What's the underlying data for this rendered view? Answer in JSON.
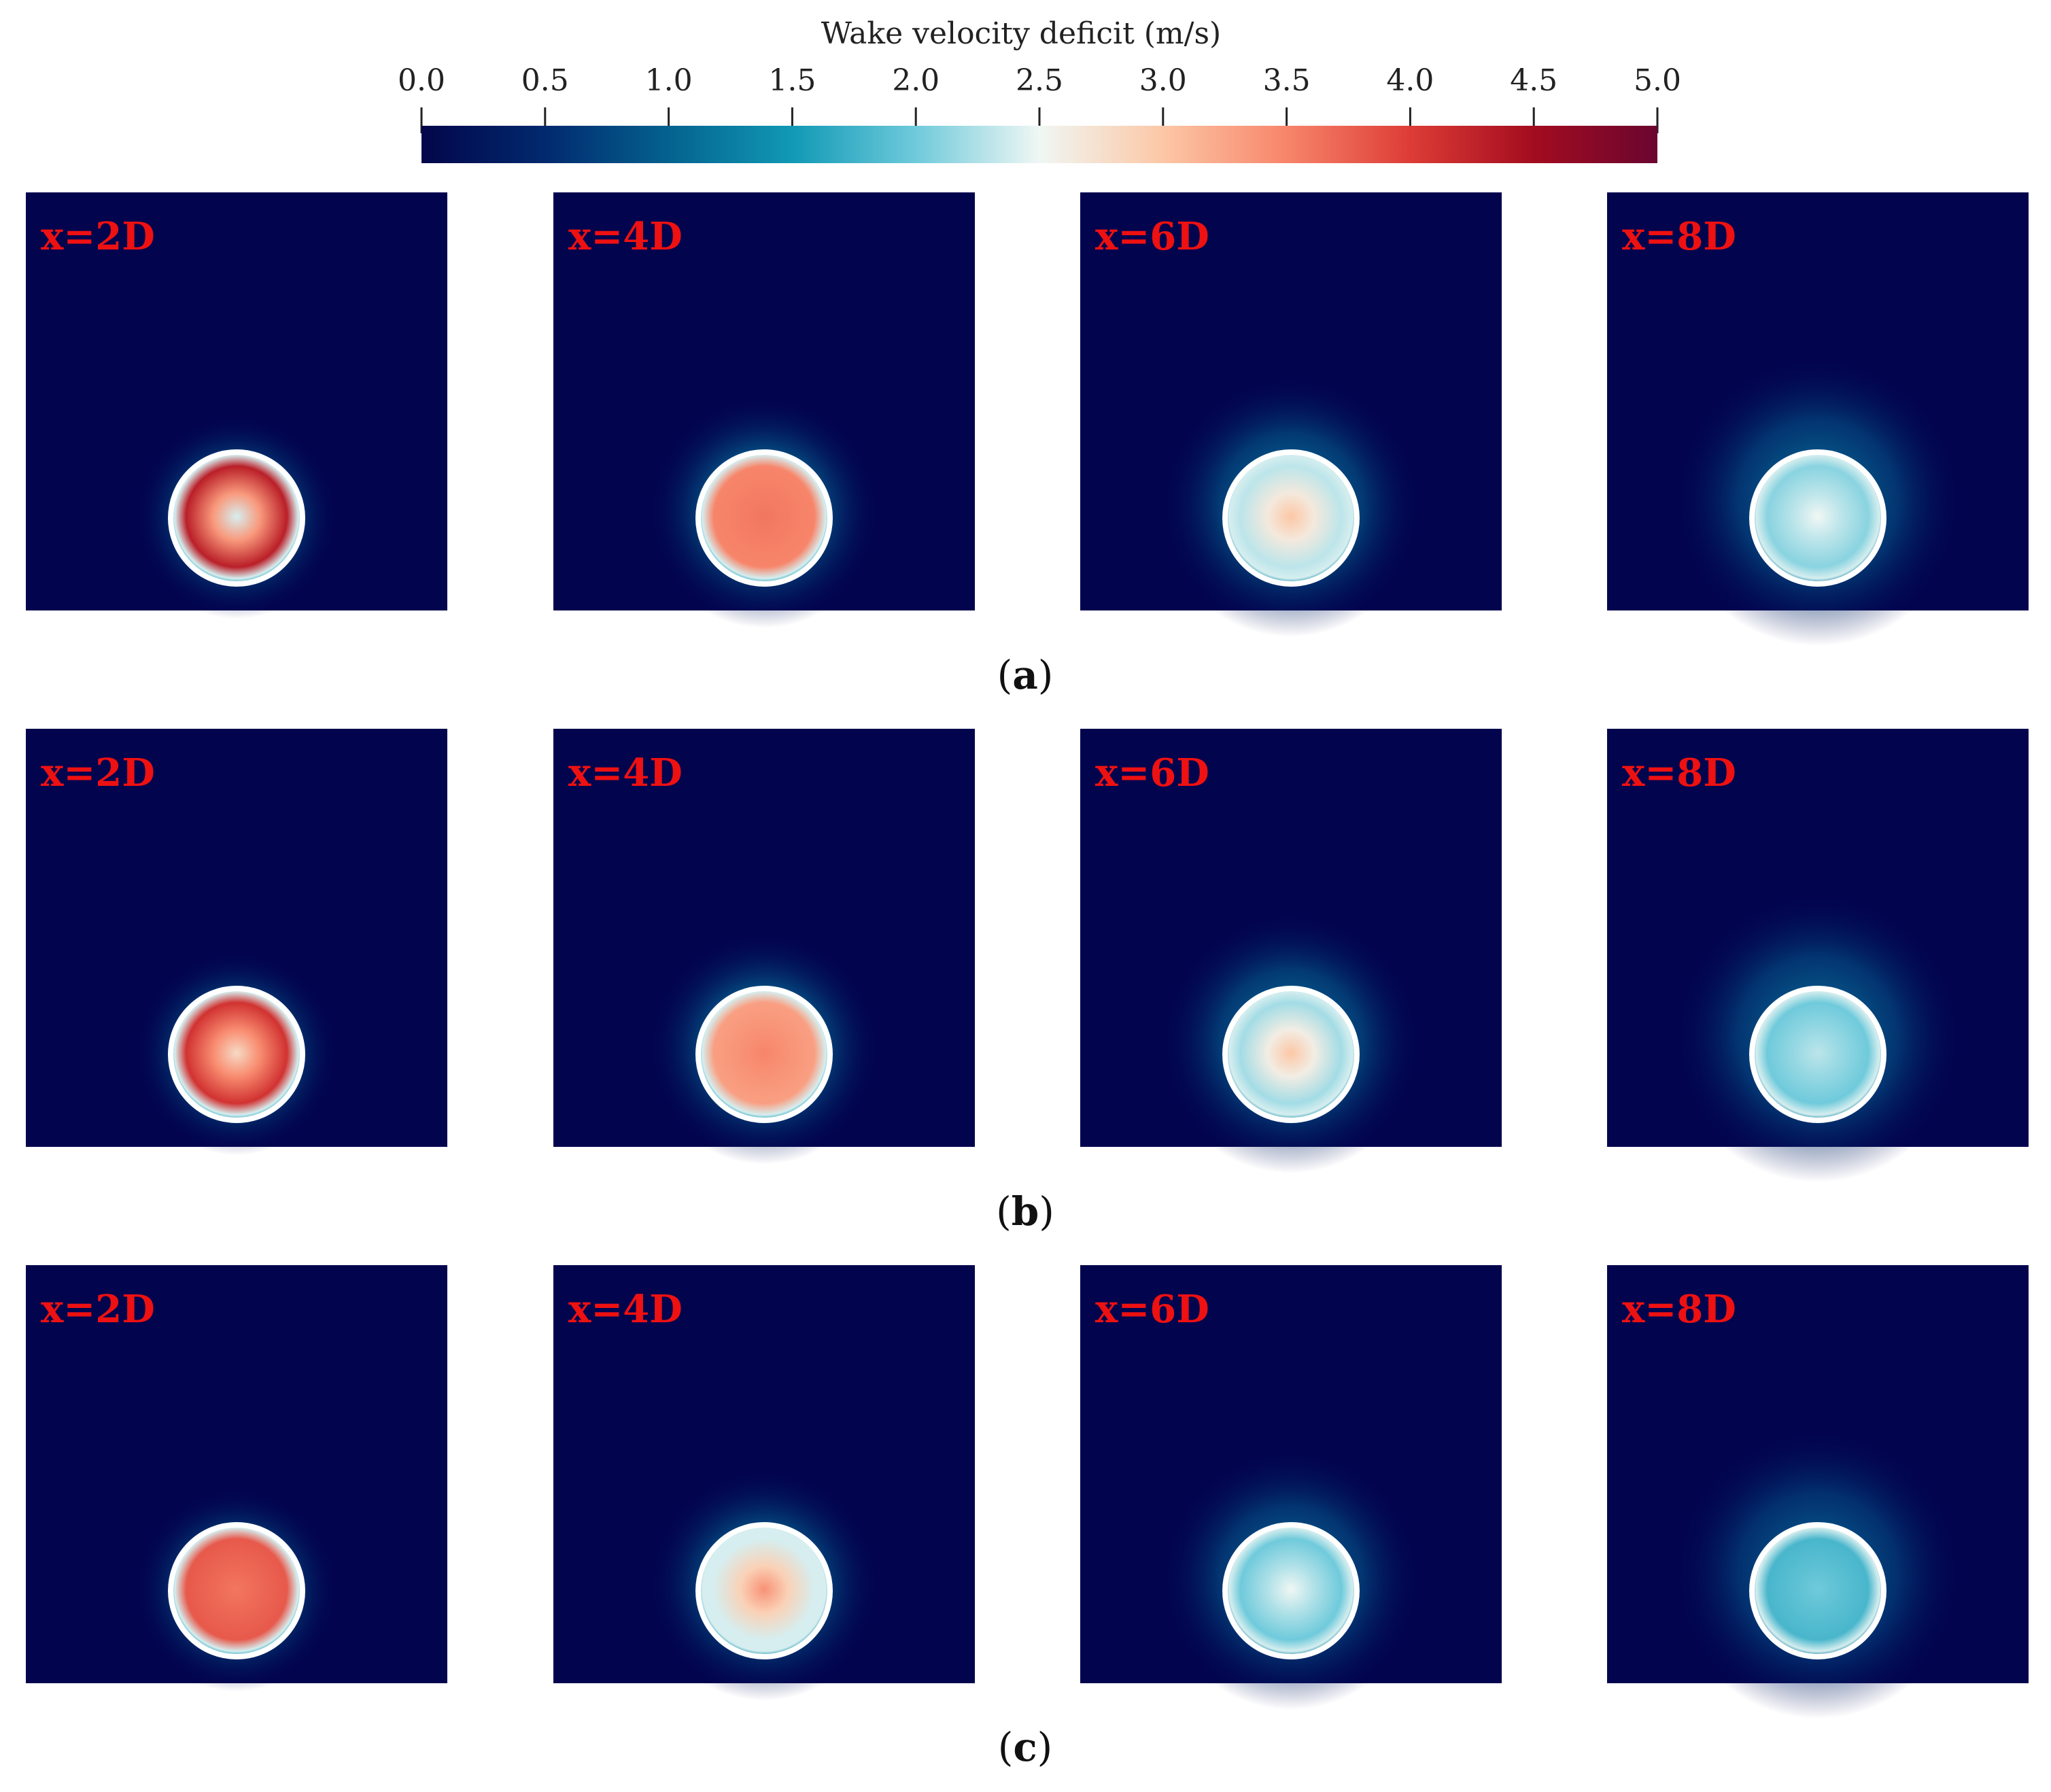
{
  "colorbar": {
    "title": "Wake velocity deficit (m/s)",
    "min": 0.0,
    "max": 5.0,
    "ticks": [
      "0.0",
      "0.5",
      "1.0",
      "1.5",
      "2.0",
      "2.5",
      "3.0",
      "3.5",
      "4.0",
      "4.5",
      "5.0"
    ],
    "colors": [
      "#03064a",
      "#02296e",
      "#04628f",
      "#1199b5",
      "#6fcadb",
      "#f0f7f4",
      "#fcc7a6",
      "#f7856a",
      "#dd3c36",
      "#a30c1f",
      "#6a0530"
    ]
  },
  "background_color": "#02044e",
  "rotor_ring_color": "#ffffff",
  "rows": [
    {
      "label_paren_open": "(",
      "label_letter": "a",
      "label_paren_close": ")",
      "panels": [
        {
          "label": "x=2D",
          "center_value": 2.4,
          "core_value": 4.3,
          "halo_value": 1.6
        },
        {
          "label": "x=4D",
          "center_value": 3.6,
          "core_value": 3.5,
          "halo_value": 1.5
        },
        {
          "label": "x=6D",
          "center_value": 3.0,
          "core_value": 2.3,
          "halo_value": 1.4
        },
        {
          "label": "x=8D",
          "center_value": 2.5,
          "core_value": 2.1,
          "halo_value": 1.3
        }
      ]
    },
    {
      "label_paren_open": "(",
      "label_letter": "b",
      "label_paren_close": ")",
      "panels": [
        {
          "label": "x=2D",
          "center_value": 2.8,
          "core_value": 4.1,
          "halo_value": 1.6
        },
        {
          "label": "x=4D",
          "center_value": 3.5,
          "core_value": 3.3,
          "halo_value": 1.5
        },
        {
          "label": "x=6D",
          "center_value": 3.0,
          "core_value": 2.2,
          "halo_value": 1.4
        },
        {
          "label": "x=8D",
          "center_value": 2.3,
          "core_value": 2.0,
          "halo_value": 1.3
        }
      ]
    },
    {
      "label_paren_open": "(",
      "label_letter": "c",
      "label_paren_close": ")",
      "panels": [
        {
          "label": "x=2D",
          "center_value": 3.6,
          "core_value": 3.8,
          "halo_value": 1.5
        },
        {
          "label": "x=4D",
          "center_value": 3.4,
          "core_value": 2.4,
          "halo_value": 1.4
        },
        {
          "label": "x=6D",
          "center_value": 2.5,
          "core_value": 2.0,
          "halo_value": 1.3
        },
        {
          "label": "x=8D",
          "center_value": 2.0,
          "core_value": 1.8,
          "halo_value": 1.2
        }
      ]
    }
  ]
}
